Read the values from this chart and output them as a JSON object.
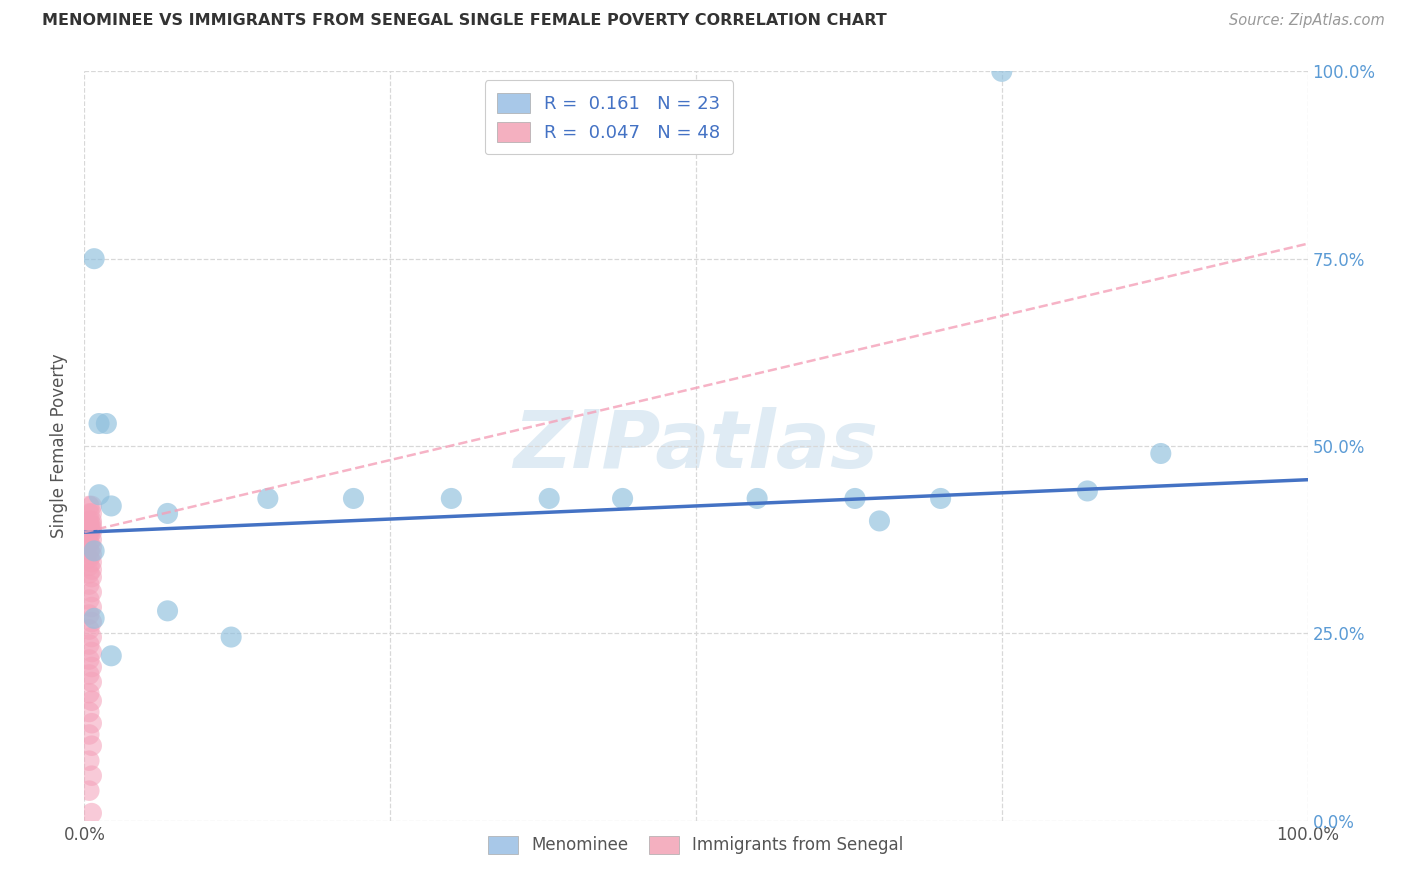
{
  "title": "MENOMINEE VS IMMIGRANTS FROM SENEGAL SINGLE FEMALE POVERTY CORRELATION CHART",
  "source": "Source: ZipAtlas.com",
  "ylabel": "Single Female Poverty",
  "xlim": [
    0,
    1.0
  ],
  "ylim": [
    0,
    1.0
  ],
  "watermark": "ZIPatlas",
  "legend1_label": "R =  0.161   N = 23",
  "legend2_label": "R =  0.047   N = 48",
  "blue_scatter_color": "#8ebfdd",
  "pink_scatter_color": "#f4a0b8",
  "blue_line_color": "#4472c4",
  "pink_line_color": "#f4a0b8",
  "menominee_x": [
    0.008,
    0.012,
    0.018,
    0.012,
    0.008,
    0.022,
    0.008,
    0.068,
    0.068,
    0.022,
    0.12,
    0.63,
    0.7,
    0.82,
    0.88,
    0.65,
    0.55,
    0.44,
    0.38,
    0.3,
    0.22,
    0.15,
    0.75
  ],
  "menominee_y": [
    0.75,
    0.53,
    0.53,
    0.435,
    0.36,
    0.42,
    0.27,
    0.41,
    0.28,
    0.22,
    0.245,
    0.43,
    0.43,
    0.44,
    0.49,
    0.4,
    0.43,
    0.43,
    0.43,
    0.43,
    0.43,
    0.43,
    1.0
  ],
  "senegal_x": [
    0.004,
    0.006,
    0.004,
    0.006,
    0.004,
    0.006,
    0.004,
    0.006,
    0.004,
    0.006,
    0.004,
    0.006,
    0.004,
    0.006,
    0.004,
    0.006,
    0.004,
    0.006,
    0.004,
    0.006,
    0.004,
    0.006,
    0.004,
    0.006,
    0.004,
    0.006,
    0.004,
    0.006,
    0.004,
    0.006,
    0.004,
    0.006,
    0.004,
    0.006,
    0.004,
    0.006,
    0.004,
    0.006,
    0.004,
    0.006,
    0.004,
    0.006,
    0.004,
    0.006,
    0.004,
    0.006,
    0.004,
    0.006
  ],
  "senegal_y": [
    0.42,
    0.42,
    0.41,
    0.41,
    0.4,
    0.4,
    0.395,
    0.395,
    0.39,
    0.39,
    0.385,
    0.385,
    0.38,
    0.375,
    0.37,
    0.365,
    0.36,
    0.355,
    0.35,
    0.345,
    0.34,
    0.335,
    0.33,
    0.325,
    0.315,
    0.305,
    0.295,
    0.285,
    0.275,
    0.265,
    0.255,
    0.245,
    0.235,
    0.225,
    0.215,
    0.205,
    0.195,
    0.185,
    0.17,
    0.16,
    0.145,
    0.13,
    0.115,
    0.1,
    0.08,
    0.06,
    0.04,
    0.01
  ],
  "blue_line_x0": 0.0,
  "blue_line_y0": 0.385,
  "blue_line_x1": 1.0,
  "blue_line_y1": 0.455,
  "pink_line_x0": 0.0,
  "pink_line_y0": 0.385,
  "pink_line_x1": 1.0,
  "pink_line_y1": 0.77,
  "background_color": "#ffffff",
  "grid_color": "#d8d8d8"
}
